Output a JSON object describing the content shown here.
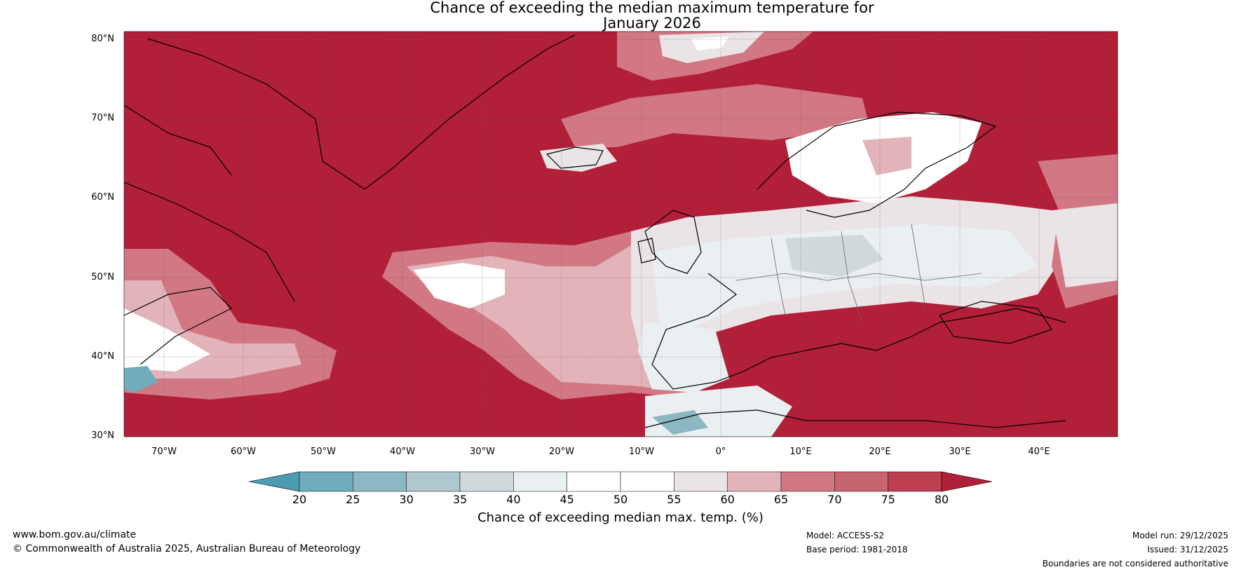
{
  "title_line1": "Chance of exceeding the median maximum temperature for",
  "title_line2": "January 2026",
  "lat_labels": [
    "80°N",
    "70°N",
    "60°N",
    "50°N",
    "40°N",
    "30°N"
  ],
  "lon_labels": [
    "70°W",
    "60°W",
    "50°W",
    "40°W",
    "30°W",
    "20°W",
    "10°W",
    "0°",
    "10°E",
    "20°E",
    "30°E",
    "40°E"
  ],
  "colorbar": {
    "ticks": [
      "20",
      "25",
      "30",
      "35",
      "40",
      "45",
      "50",
      "55",
      "60",
      "65",
      "70",
      "75",
      "80"
    ],
    "colors": [
      "#4b9cb0",
      "#6fadbc",
      "#8cb8c4",
      "#aec8cd",
      "#cfd9dc",
      "#eaf0f2",
      "#ffffff",
      "#ffffff",
      "#ebe4e6",
      "#e3b3ba",
      "#d27884",
      "#c66570",
      "#bd3f50",
      "#b11f38"
    ],
    "label": "Chance of exceeding median max. temp. (%)"
  },
  "footer": {
    "website": "www.bom.gov.au/climate",
    "copyright": "© Commonwealth of Australia 2025, Australian Bureau of Meteorology",
    "model": "Model: ACCESS-S2",
    "base_period": "Base period: 1981-2018",
    "model_run": "Model run: 29/12/2025",
    "issued": "Issued: 31/12/2025",
    "disclaimer": "Boundaries are not considered authoritative"
  }
}
